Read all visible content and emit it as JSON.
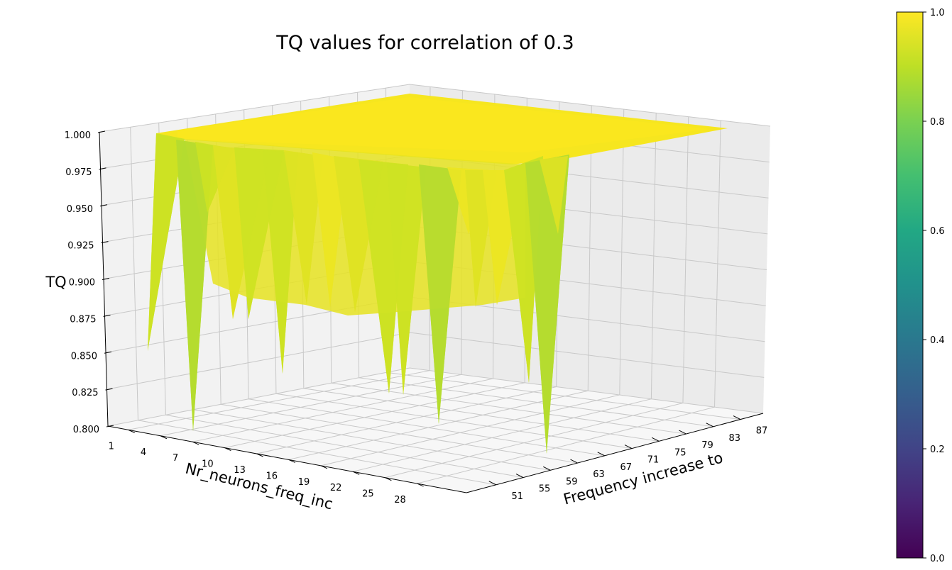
{
  "chart_data": {
    "type": "surface",
    "title": "TQ values for correlation of 0.3",
    "xlabel": "Frequency increase to",
    "ylabel": "Nr_neurons_freq_inc",
    "zlabel": "TQ",
    "x_ticks": [
      "51",
      "55",
      "59",
      "63",
      "67",
      "71",
      "75",
      "79",
      "83",
      "87"
    ],
    "y_ticks": [
      "1",
      "4",
      "7",
      "10",
      "13",
      "16",
      "19",
      "22",
      "25",
      "28"
    ],
    "z_ticks": [
      "0.800",
      "0.825",
      "0.850",
      "0.875",
      "0.900",
      "0.925",
      "0.950",
      "0.975",
      "1.000"
    ],
    "zlim": [
      0.8,
      1.0
    ],
    "grid": true,
    "colormap": "viridis",
    "colorbar": {
      "ticks": [
        "0.0",
        "0.2",
        "0.4",
        "0.6",
        "0.8",
        "1.0"
      ],
      "range": [
        0,
        1
      ]
    },
    "surface_summary": "Values are mostly 1.0; dips down to about 0.80 near low frequency-increase values (51-67); constant 1.0 for frequency increase above ~71"
  }
}
